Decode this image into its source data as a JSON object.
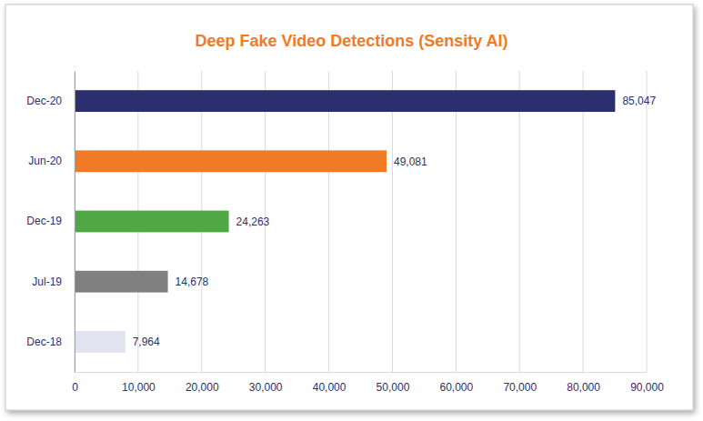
{
  "chart_data": {
    "type": "bar",
    "orientation": "horizontal",
    "title": "Deep Fake Video Detections (Sensity AI)",
    "categories": [
      "Dec-20",
      "Jun-20",
      "Dec-19",
      "Jul-19",
      "Dec-18"
    ],
    "values": [
      85047,
      49081,
      24263,
      14678,
      7964
    ],
    "value_labels": [
      "85,047",
      "49,081",
      "24,263",
      "14,678",
      "7,964"
    ],
    "colors": [
      "#2b2f6e",
      "#f07a26",
      "#4fa843",
      "#808080",
      "#e2e3f0"
    ],
    "xlim": [
      0,
      90000
    ],
    "xticks": [
      0,
      {
        "value": 10000,
        "label": "10,000"
      },
      {
        "value": 20000,
        "label": "20,000"
      },
      {
        "value": 30000,
        "label": "30,000"
      },
      {
        "value": 40000,
        "label": "40,000"
      },
      {
        "value": 50000,
        "label": "50,000"
      },
      {
        "value": 60000,
        "label": "60,000"
      },
      {
        "value": 70000,
        "label": "70,000"
      },
      {
        "value": 80000,
        "label": "80,000"
      },
      {
        "value": 90000,
        "label": "90,000"
      }
    ],
    "grid": true,
    "data_labels": true
  }
}
